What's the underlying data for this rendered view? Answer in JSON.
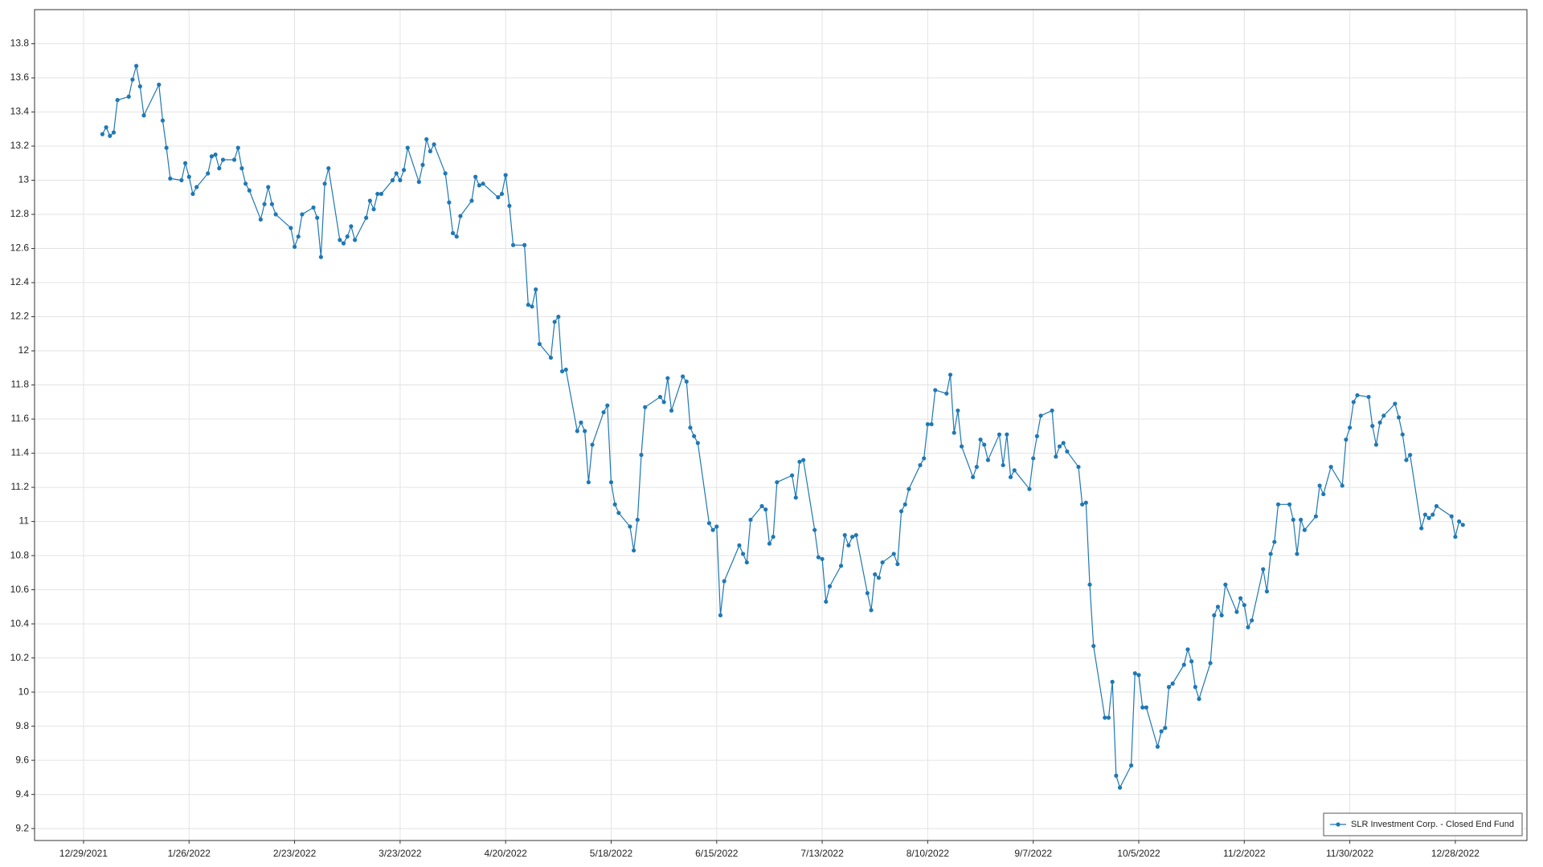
{
  "chart_data": {
    "type": "line",
    "x": [
      "1/3/2022",
      "1/4/2022",
      "1/5/2022",
      "1/6/2022",
      "1/7/2022",
      "1/10/2022",
      "1/11/2022",
      "1/12/2022",
      "1/13/2022",
      "1/14/2022",
      "1/18/2022",
      "1/19/2022",
      "1/20/2022",
      "1/21/2022",
      "1/24/2022",
      "1/25/2022",
      "1/26/2022",
      "1/27/2022",
      "1/28/2022",
      "1/31/2022",
      "2/1/2022",
      "2/2/2022",
      "2/3/2022",
      "2/4/2022",
      "2/7/2022",
      "2/8/2022",
      "2/9/2022",
      "2/10/2022",
      "2/11/2022",
      "2/14/2022",
      "2/15/2022",
      "2/16/2022",
      "2/17/2022",
      "2/18/2022",
      "2/22/2022",
      "2/23/2022",
      "2/24/2022",
      "2/25/2022",
      "2/28/2022",
      "3/1/2022",
      "3/2/2022",
      "3/3/2022",
      "3/4/2022",
      "3/7/2022",
      "3/8/2022",
      "3/9/2022",
      "3/10/2022",
      "3/11/2022",
      "3/14/2022",
      "3/15/2022",
      "3/16/2022",
      "3/17/2022",
      "3/18/2022",
      "3/21/2022",
      "3/22/2022",
      "3/23/2022",
      "3/24/2022",
      "3/25/2022",
      "3/28/2022",
      "3/29/2022",
      "3/30/2022",
      "3/31/2022",
      "4/1/2022",
      "4/4/2022",
      "4/5/2022",
      "4/6/2022",
      "4/7/2022",
      "4/8/2022",
      "4/11/2022",
      "4/12/2022",
      "4/13/2022",
      "4/14/2022",
      "4/18/2022",
      "4/19/2022",
      "4/20/2022",
      "4/21/2022",
      "4/22/2022",
      "4/25/2022",
      "4/26/2022",
      "4/27/2022",
      "4/28/2022",
      "4/29/2022",
      "5/2/2022",
      "5/3/2022",
      "5/4/2022",
      "5/5/2022",
      "5/6/2022",
      "5/9/2022",
      "5/10/2022",
      "5/11/2022",
      "5/12/2022",
      "5/13/2022",
      "5/16/2022",
      "5/17/2022",
      "5/18/2022",
      "5/19/2022",
      "5/20/2022",
      "5/23/2022",
      "5/24/2022",
      "5/25/2022",
      "5/26/2022",
      "5/27/2022",
      "5/31/2022",
      "6/1/2022",
      "6/2/2022",
      "6/3/2022",
      "6/6/2022",
      "6/7/2022",
      "6/8/2022",
      "6/9/2022",
      "6/10/2022",
      "6/13/2022",
      "6/14/2022",
      "6/15/2022",
      "6/16/2022",
      "6/17/2022",
      "6/21/2022",
      "6/22/2022",
      "6/23/2022",
      "6/24/2022",
      "6/27/2022",
      "6/28/2022",
      "6/29/2022",
      "6/30/2022",
      "7/1/2022",
      "7/5/2022",
      "7/6/2022",
      "7/7/2022",
      "7/8/2022",
      "7/11/2022",
      "7/12/2022",
      "7/13/2022",
      "7/14/2022",
      "7/15/2022",
      "7/18/2022",
      "7/19/2022",
      "7/20/2022",
      "7/21/2022",
      "7/22/2022",
      "7/25/2022",
      "7/26/2022",
      "7/27/2022",
      "7/28/2022",
      "7/29/2022",
      "8/1/2022",
      "8/2/2022",
      "8/3/2022",
      "8/4/2022",
      "8/5/2022",
      "8/8/2022",
      "8/9/2022",
      "8/10/2022",
      "8/11/2022",
      "8/12/2022",
      "8/15/2022",
      "8/16/2022",
      "8/17/2022",
      "8/18/2022",
      "8/19/2022",
      "8/22/2022",
      "8/23/2022",
      "8/24/2022",
      "8/25/2022",
      "8/26/2022",
      "8/29/2022",
      "8/30/2022",
      "8/31/2022",
      "9/1/2022",
      "9/2/2022",
      "9/6/2022",
      "9/7/2022",
      "9/8/2022",
      "9/9/2022",
      "9/12/2022",
      "9/13/2022",
      "9/14/2022",
      "9/15/2022",
      "9/16/2022",
      "9/19/2022",
      "9/20/2022",
      "9/21/2022",
      "9/22/2022",
      "9/23/2022",
      "9/26/2022",
      "9/27/2022",
      "9/28/2022",
      "9/29/2022",
      "9/30/2022",
      "10/3/2022",
      "10/4/2022",
      "10/5/2022",
      "10/6/2022",
      "10/7/2022",
      "10/10/2022",
      "10/11/2022",
      "10/12/2022",
      "10/13/2022",
      "10/14/2022",
      "10/17/2022",
      "10/18/2022",
      "10/19/2022",
      "10/20/2022",
      "10/21/2022",
      "10/24/2022",
      "10/25/2022",
      "10/26/2022",
      "10/27/2022",
      "10/28/2022",
      "10/31/2022",
      "11/1/2022",
      "11/2/2022",
      "11/3/2022",
      "11/4/2022",
      "11/7/2022",
      "11/8/2022",
      "11/9/2022",
      "11/10/2022",
      "11/11/2022",
      "11/14/2022",
      "11/15/2022",
      "11/16/2022",
      "11/17/2022",
      "11/18/2022",
      "11/21/2022",
      "11/22/2022",
      "11/23/2022",
      "11/25/2022",
      "11/28/2022",
      "11/29/2022",
      "11/30/2022",
      "12/1/2022",
      "12/2/2022",
      "12/5/2022",
      "12/6/2022",
      "12/7/2022",
      "12/8/2022",
      "12/9/2022",
      "12/12/2022",
      "12/13/2022",
      "12/14/2022",
      "12/15/2022",
      "12/16/2022",
      "12/19/2022",
      "12/20/2022",
      "12/21/2022",
      "12/22/2022",
      "12/23/2022",
      "12/27/2022",
      "12/28/2022",
      "12/29/2022",
      "12/30/2022"
    ],
    "series": [
      {
        "name": "SLR Investment Corp. - Closed End Fund",
        "color": "#1f78b4",
        "values": [
          13.27,
          13.31,
          13.26,
          13.28,
          13.47,
          13.49,
          13.59,
          13.67,
          13.55,
          13.38,
          13.56,
          13.35,
          13.19,
          13.01,
          13.0,
          13.1,
          13.02,
          12.92,
          12.96,
          13.04,
          13.14,
          13.15,
          13.07,
          13.12,
          13.12,
          13.19,
          13.07,
          12.98,
          12.94,
          12.77,
          12.86,
          12.96,
          12.86,
          12.8,
          12.72,
          12.61,
          12.67,
          12.8,
          12.84,
          12.78,
          12.55,
          12.98,
          13.07,
          12.65,
          12.63,
          12.67,
          12.73,
          12.65,
          12.78,
          12.88,
          12.83,
          12.92,
          12.92,
          13.0,
          13.04,
          13.0,
          13.06,
          13.19,
          12.99,
          13.09,
          13.24,
          13.17,
          13.21,
          13.04,
          12.87,
          12.69,
          12.67,
          12.79,
          12.88,
          13.02,
          12.97,
          12.98,
          12.9,
          12.92,
          13.03,
          12.85,
          12.62,
          12.62,
          12.27,
          12.26,
          12.36,
          12.04,
          11.96,
          12.17,
          12.2,
          11.88,
          11.89,
          11.53,
          11.58,
          11.53,
          11.23,
          11.45,
          11.64,
          11.68,
          11.23,
          11.1,
          11.05,
          10.97,
          10.83,
          11.01,
          11.39,
          11.67,
          11.73,
          11.7,
          11.84,
          11.65,
          11.85,
          11.82,
          11.55,
          11.5,
          11.46,
          10.99,
          10.95,
          10.97,
          10.45,
          10.65,
          10.86,
          10.81,
          10.76,
          11.01,
          11.09,
          11.07,
          10.87,
          10.91,
          11.23,
          11.27,
          11.14,
          11.35,
          11.36,
          10.95,
          10.79,
          10.78,
          10.53,
          10.62,
          10.74,
          10.92,
          10.86,
          10.91,
          10.92,
          10.58,
          10.48,
          10.69,
          10.67,
          10.76,
          10.81,
          10.75,
          11.06,
          11.1,
          11.19,
          11.33,
          11.37,
          11.57,
          11.57,
          11.77,
          11.75,
          11.86,
          11.52,
          11.65,
          11.44,
          11.26,
          11.32,
          11.48,
          11.45,
          11.36,
          11.51,
          11.33,
          11.51,
          11.26,
          11.3,
          11.19,
          11.37,
          11.5,
          11.62,
          11.65,
          11.38,
          11.44,
          11.46,
          11.41,
          11.32,
          11.1,
          11.11,
          10.63,
          10.27,
          9.85,
          9.85,
          10.06,
          9.51,
          9.44,
          9.57,
          10.11,
          10.1,
          9.91,
          9.91,
          9.68,
          9.77,
          9.79,
          10.03,
          10.05,
          10.16,
          10.25,
          10.18,
          10.03,
          9.96,
          10.17,
          10.45,
          10.5,
          10.45,
          10.63,
          10.47,
          10.55,
          10.51,
          10.38,
          10.42,
          10.72,
          10.59,
          10.81,
          10.88,
          11.1,
          11.1,
          11.01,
          10.81,
          11.01,
          10.95,
          11.03,
          11.21,
          11.16,
          11.32,
          11.21,
          11.48,
          11.55,
          11.7,
          11.74,
          11.73,
          11.56,
          11.45,
          11.58,
          11.62,
          11.69,
          11.61,
          11.51,
          11.36,
          11.39,
          10.96,
          11.04,
          11.02,
          11.04,
          11.09,
          11.03,
          10.91,
          11.0,
          10.98
        ]
      }
    ],
    "xlim": [
      "12/16/2021",
      "1/16/2023"
    ],
    "xticks": [
      "12/29/2021",
      "1/26/2022",
      "2/23/2022",
      "3/23/2022",
      "4/20/2022",
      "5/18/2022",
      "6/15/2022",
      "7/13/2022",
      "8/10/2022",
      "9/7/2022",
      "10/5/2022",
      "11/2/2022",
      "11/30/2022",
      "12/28/2022"
    ],
    "ylim": [
      9.13,
      14.0
    ],
    "yticks": [
      9.2,
      9.4,
      9.6,
      9.8,
      10,
      10.2,
      10.4,
      10.6,
      10.8,
      11,
      11.2,
      11.4,
      11.6,
      11.8,
      12,
      12.2,
      12.4,
      12.6,
      12.8,
      13,
      13.2,
      13.4,
      13.6,
      13.8
    ],
    "grid": true,
    "legend": "lower right"
  }
}
